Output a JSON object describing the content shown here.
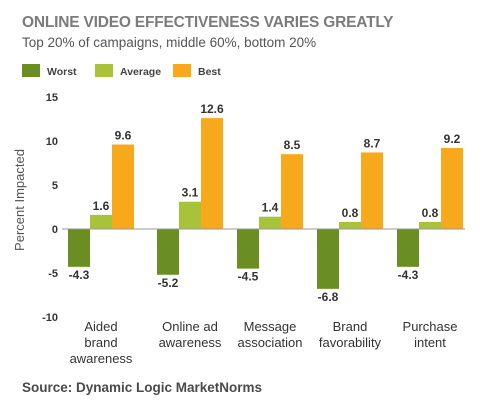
{
  "chart_data": {
    "type": "bar",
    "title": "ONLINE VIDEO EFFECTIVENESS VARIES GREATLY",
    "subtitle": "Top 20% of campaigns, middle 60%, bottom 20%",
    "ylabel": "Percent Impacted",
    "xlabel": "",
    "ylim": [
      -10,
      15
    ],
    "yticks": [
      15,
      10,
      5,
      0,
      -5,
      -10
    ],
    "grid": false,
    "legend_position": "top-left",
    "categories": [
      [
        "Aided",
        "brand",
        "awareness"
      ],
      [
        "Online ad",
        "awareness"
      ],
      [
        "Message",
        "association"
      ],
      [
        "Brand",
        "favorability"
      ],
      [
        "Purchase",
        "intent"
      ]
    ],
    "series": [
      {
        "name": "Worst",
        "color": "#6b8e23",
        "values": [
          -4.3,
          -5.2,
          -4.5,
          -6.8,
          -4.3
        ]
      },
      {
        "name": "Average",
        "color": "#a8c23a",
        "values": [
          1.6,
          3.1,
          1.4,
          0.8,
          0.8
        ]
      },
      {
        "name": "Best",
        "color": "#f7a81b",
        "values": [
          9.6,
          12.6,
          8.5,
          8.7,
          9.2
        ]
      }
    ],
    "source": "Source: Dynamic Logic MarketNorms"
  }
}
